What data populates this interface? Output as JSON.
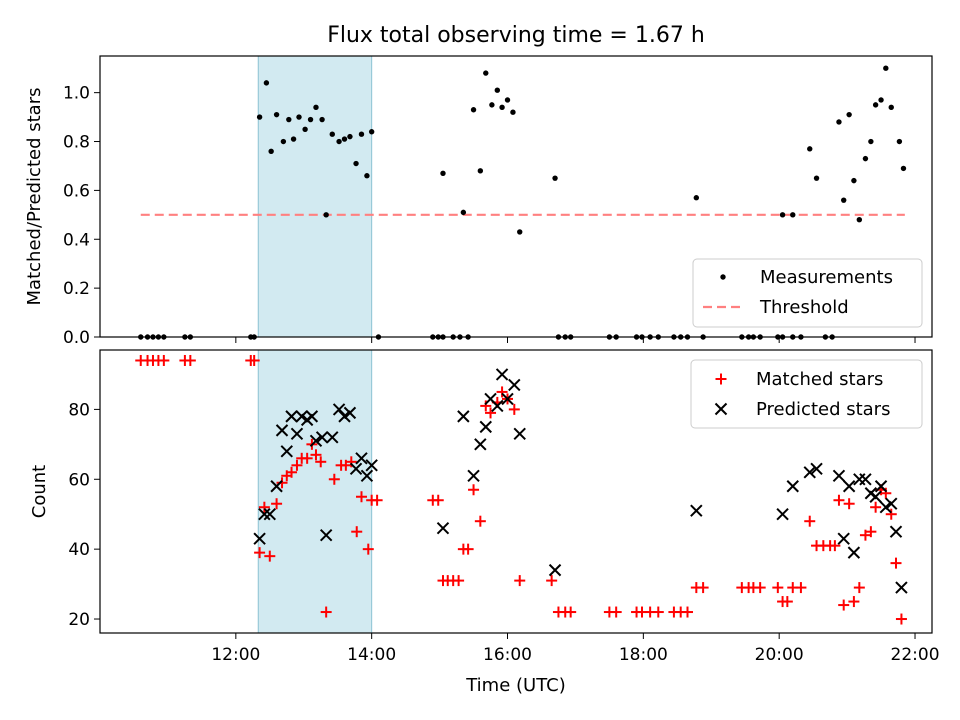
{
  "title": "Flux total observing time = 1.67 h",
  "colors": {
    "shade": "#add8e6",
    "threshold": "#ff8080",
    "matched": "#ff0000",
    "predicted": "#000000",
    "measurements": "#000000"
  },
  "chart_data": [
    {
      "type": "scatter",
      "id": "ratio",
      "xlabel": "",
      "ylabel": "Matched/Predicted stars",
      "x_unit": "hours UTC",
      "xlim": [
        10.0,
        22.25
      ],
      "ylim": [
        0.0,
        1.15
      ],
      "yticks": [
        0.0,
        0.2,
        0.4,
        0.6,
        0.8,
        1.0
      ],
      "ytick_labels": [
        "0.0",
        "0.2",
        "0.4",
        "0.6",
        "0.8",
        "1.0"
      ],
      "shaded_interval": [
        12.33,
        14.0
      ],
      "legend": {
        "position": "lower right",
        "entries": [
          "Measurements",
          "Threshold"
        ]
      },
      "threshold": {
        "name": "Threshold",
        "y": 0.5,
        "x": [
          10.6,
          21.85
        ],
        "style": "dashed"
      },
      "series": [
        {
          "name": "Measurements",
          "marker": "dot",
          "points": [
            [
              10.6,
              0.0
            ],
            [
              10.7,
              0.0
            ],
            [
              10.78,
              0.0
            ],
            [
              10.86,
              0.0
            ],
            [
              10.94,
              0.0
            ],
            [
              11.25,
              0.0
            ],
            [
              11.33,
              0.0
            ],
            [
              12.22,
              0.0
            ],
            [
              12.27,
              0.0
            ],
            [
              12.35,
              0.9
            ],
            [
              12.45,
              1.04
            ],
            [
              12.52,
              0.76
            ],
            [
              12.6,
              0.91
            ],
            [
              12.7,
              0.8
            ],
            [
              12.78,
              0.89
            ],
            [
              12.85,
              0.81
            ],
            [
              12.93,
              0.9
            ],
            [
              13.02,
              0.85
            ],
            [
              13.1,
              0.89
            ],
            [
              13.18,
              0.94
            ],
            [
              13.27,
              0.89
            ],
            [
              13.33,
              0.5
            ],
            [
              13.42,
              0.83
            ],
            [
              13.52,
              0.8
            ],
            [
              13.6,
              0.81
            ],
            [
              13.68,
              0.82
            ],
            [
              13.77,
              0.71
            ],
            [
              13.85,
              0.83
            ],
            [
              13.93,
              0.66
            ],
            [
              14.0,
              0.84
            ],
            [
              14.1,
              0.0
            ],
            [
              14.9,
              0.0
            ],
            [
              14.98,
              0.0
            ],
            [
              15.05,
              0.67
            ],
            [
              15.05,
              0.0
            ],
            [
              15.2,
              0.0
            ],
            [
              15.3,
              0.0
            ],
            [
              15.35,
              0.51
            ],
            [
              15.42,
              0.0
            ],
            [
              15.5,
              0.93
            ],
            [
              15.6,
              0.68
            ],
            [
              15.68,
              1.08
            ],
            [
              15.77,
              0.95
            ],
            [
              15.85,
              1.01
            ],
            [
              15.92,
              0.94
            ],
            [
              16.0,
              0.97
            ],
            [
              16.08,
              0.92
            ],
            [
              16.18,
              0.43
            ],
            [
              16.7,
              0.65
            ],
            [
              16.75,
              0.0
            ],
            [
              16.85,
              0.0
            ],
            [
              16.93,
              0.0
            ],
            [
              17.5,
              0.0
            ],
            [
              17.6,
              0.0
            ],
            [
              17.9,
              0.0
            ],
            [
              17.98,
              0.0
            ],
            [
              18.1,
              0.0
            ],
            [
              18.22,
              0.0
            ],
            [
              18.45,
              0.0
            ],
            [
              18.55,
              0.0
            ],
            [
              18.65,
              0.0
            ],
            [
              18.78,
              0.57
            ],
            [
              18.88,
              0.0
            ],
            [
              19.45,
              0.0
            ],
            [
              19.55,
              0.0
            ],
            [
              19.62,
              0.0
            ],
            [
              19.72,
              0.0
            ],
            [
              19.98,
              0.0
            ],
            [
              20.05,
              0.5
            ],
            [
              20.05,
              0.0
            ],
            [
              20.2,
              0.5
            ],
            [
              20.2,
              0.0
            ],
            [
              20.32,
              0.0
            ],
            [
              20.45,
              0.77
            ],
            [
              20.55,
              0.65
            ],
            [
              20.68,
              0.0
            ],
            [
              20.78,
              0.0
            ],
            [
              20.88,
              0.88
            ],
            [
              20.95,
              0.56
            ],
            [
              21.03,
              0.91
            ],
            [
              21.1,
              0.64
            ],
            [
              21.18,
              0.48
            ],
            [
              21.27,
              0.73
            ],
            [
              21.35,
              0.8
            ],
            [
              21.42,
              0.95
            ],
            [
              21.5,
              0.97
            ],
            [
              21.57,
              1.1
            ],
            [
              21.65,
              0.94
            ],
            [
              21.77,
              0.8
            ],
            [
              21.83,
              0.69
            ]
          ]
        }
      ]
    },
    {
      "type": "scatter",
      "id": "counts",
      "xlabel": "Time (UTC)",
      "ylabel": "Count",
      "x_unit": "hours UTC",
      "xlim": [
        10.0,
        22.25
      ],
      "ylim": [
        16.0,
        97.0
      ],
      "xticks": [
        12,
        14,
        16,
        18,
        20,
        22
      ],
      "xtick_labels": [
        "12:00",
        "14:00",
        "16:00",
        "18:00",
        "20:00",
        "22:00"
      ],
      "yticks": [
        20,
        40,
        60,
        80
      ],
      "ytick_labels": [
        "20",
        "40",
        "60",
        "80"
      ],
      "shaded_interval": [
        12.33,
        14.0
      ],
      "legend": {
        "position": "upper right",
        "entries": [
          "Matched stars",
          "Predicted stars"
        ]
      },
      "series": [
        {
          "name": "Matched stars",
          "marker": "plus",
          "points": [
            [
              10.6,
              94
            ],
            [
              10.7,
              94
            ],
            [
              10.78,
              94
            ],
            [
              10.86,
              94
            ],
            [
              10.94,
              94
            ],
            [
              11.25,
              94
            ],
            [
              11.33,
              94
            ],
            [
              12.22,
              94
            ],
            [
              12.27,
              94
            ],
            [
              12.35,
              39
            ],
            [
              12.42,
              52
            ],
            [
              12.5,
              38
            ],
            [
              12.6,
              53
            ],
            [
              12.68,
              59
            ],
            [
              12.75,
              61
            ],
            [
              12.82,
              62
            ],
            [
              12.9,
              64
            ],
            [
              12.97,
              66
            ],
            [
              13.05,
              66
            ],
            [
              13.12,
              70
            ],
            [
              13.18,
              67
            ],
            [
              13.25,
              65
            ],
            [
              13.33,
              22
            ],
            [
              13.45,
              60
            ],
            [
              13.55,
              64
            ],
            [
              13.62,
              64
            ],
            [
              13.7,
              65
            ],
            [
              13.78,
              45
            ],
            [
              13.85,
              55
            ],
            [
              13.95,
              40
            ],
            [
              14.0,
              54
            ],
            [
              14.08,
              54
            ],
            [
              14.9,
              54
            ],
            [
              14.98,
              54
            ],
            [
              15.05,
              31
            ],
            [
              15.12,
              31
            ],
            [
              15.2,
              31
            ],
            [
              15.28,
              31
            ],
            [
              15.35,
              40
            ],
            [
              15.42,
              40
            ],
            [
              15.5,
              57
            ],
            [
              15.6,
              48
            ],
            [
              15.68,
              81
            ],
            [
              15.75,
              79
            ],
            [
              15.85,
              82
            ],
            [
              15.92,
              85
            ],
            [
              16.0,
              83
            ],
            [
              16.1,
              80
            ],
            [
              16.18,
              31
            ],
            [
              16.65,
              31
            ],
            [
              16.75,
              22
            ],
            [
              16.85,
              22
            ],
            [
              16.93,
              22
            ],
            [
              17.5,
              22
            ],
            [
              17.6,
              22
            ],
            [
              17.9,
              22
            ],
            [
              17.98,
              22
            ],
            [
              18.1,
              22
            ],
            [
              18.22,
              22
            ],
            [
              18.45,
              22
            ],
            [
              18.55,
              22
            ],
            [
              18.65,
              22
            ],
            [
              18.78,
              29
            ],
            [
              18.88,
              29
            ],
            [
              19.45,
              29
            ],
            [
              19.55,
              29
            ],
            [
              19.62,
              29
            ],
            [
              19.72,
              29
            ],
            [
              19.98,
              29
            ],
            [
              20.05,
              25
            ],
            [
              20.12,
              25
            ],
            [
              20.2,
              29
            ],
            [
              20.32,
              29
            ],
            [
              20.45,
              48
            ],
            [
              20.55,
              41
            ],
            [
              20.65,
              41
            ],
            [
              20.75,
              41
            ],
            [
              20.82,
              41
            ],
            [
              20.88,
              54
            ],
            [
              20.95,
              24
            ],
            [
              21.03,
              53
            ],
            [
              21.1,
              25
            ],
            [
              21.18,
              29
            ],
            [
              21.27,
              44
            ],
            [
              21.35,
              45
            ],
            [
              21.42,
              52
            ],
            [
              21.5,
              57
            ],
            [
              21.57,
              56
            ],
            [
              21.65,
              50
            ],
            [
              21.72,
              36
            ],
            [
              21.8,
              20
            ]
          ]
        },
        {
          "name": "Predicted stars",
          "marker": "x",
          "points": [
            [
              12.35,
              43
            ],
            [
              12.42,
              50
            ],
            [
              12.5,
              50
            ],
            [
              12.6,
              58
            ],
            [
              12.68,
              74
            ],
            [
              12.75,
              68
            ],
            [
              12.82,
              78
            ],
            [
              12.9,
              73
            ],
            [
              12.97,
              78
            ],
            [
              13.05,
              77
            ],
            [
              13.12,
              78
            ],
            [
              13.18,
              71
            ],
            [
              13.27,
              72
            ],
            [
              13.33,
              44
            ],
            [
              13.42,
              72
            ],
            [
              13.52,
              80
            ],
            [
              13.6,
              78
            ],
            [
              13.68,
              79
            ],
            [
              13.77,
              63
            ],
            [
              13.85,
              66
            ],
            [
              13.93,
              61
            ],
            [
              14.0,
              64
            ],
            [
              15.05,
              46
            ],
            [
              15.35,
              78
            ],
            [
              15.5,
              61
            ],
            [
              15.6,
              70
            ],
            [
              15.68,
              75
            ],
            [
              15.75,
              83
            ],
            [
              15.85,
              81
            ],
            [
              15.92,
              90
            ],
            [
              16.0,
              83
            ],
            [
              16.1,
              87
            ],
            [
              16.18,
              73
            ],
            [
              16.7,
              34
            ],
            [
              18.78,
              51
            ],
            [
              20.05,
              50
            ],
            [
              20.2,
              58
            ],
            [
              20.45,
              62
            ],
            [
              20.55,
              63
            ],
            [
              20.88,
              61
            ],
            [
              20.95,
              43
            ],
            [
              21.03,
              58
            ],
            [
              21.1,
              39
            ],
            [
              21.18,
              60
            ],
            [
              21.27,
              60
            ],
            [
              21.35,
              56
            ],
            [
              21.42,
              55
            ],
            [
              21.5,
              58
            ],
            [
              21.57,
              52
            ],
            [
              21.65,
              53
            ],
            [
              21.72,
              45
            ],
            [
              21.8,
              29
            ]
          ]
        }
      ]
    }
  ]
}
